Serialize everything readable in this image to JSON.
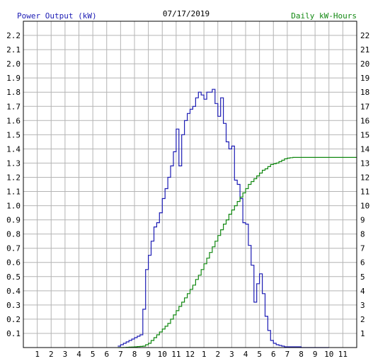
{
  "chart_data": {
    "type": "line",
    "title": "07/17/2019",
    "ylabel": "Power Output (kW)",
    "y2label": "Daily kW-Hours",
    "colors": {
      "power": "#1c1cb4",
      "energy": "#118811",
      "left_label": "#1c1cb4",
      "right_label": "#118811",
      "grid": "#b4b4b4",
      "axis": "#000000"
    },
    "x_range": [
      0,
      24
    ],
    "ylim": [
      0,
      2.3
    ],
    "y2lim": [
      0,
      23
    ],
    "y_ticks": [
      "0.1",
      "0.2",
      "0.3",
      "0.4",
      "0.5",
      "0.6",
      "0.7",
      "0.8",
      "0.9",
      "1.0",
      "1.1",
      "1.2",
      "1.3",
      "1.4",
      "1.5",
      "1.6",
      "1.7",
      "1.8",
      "1.9",
      "2.0",
      "2.1",
      "2.2"
    ],
    "y2_ticks": [
      "1",
      "2",
      "3",
      "4",
      "5",
      "6",
      "7",
      "8",
      "9",
      "10",
      "11",
      "12",
      "13",
      "14",
      "15",
      "16",
      "17",
      "18",
      "19",
      "20",
      "21",
      "22"
    ],
    "x_ticks": [
      "1",
      "2",
      "3",
      "4",
      "5",
      "6",
      "7",
      "8",
      "9",
      "10",
      "11",
      "12",
      "1",
      "2",
      "3",
      "4",
      "5",
      "6",
      "7",
      "8",
      "9",
      "10",
      "11"
    ],
    "series": [
      {
        "name": "Power Output (kW)",
        "axis": "left",
        "x": [
          6.8,
          7.0,
          7.2,
          7.4,
          7.6,
          7.8,
          8.0,
          8.2,
          8.4,
          8.6,
          8.8,
          9.0,
          9.2,
          9.4,
          9.6,
          9.8,
          10.0,
          10.2,
          10.4,
          10.6,
          10.8,
          11.0,
          11.2,
          11.4,
          11.6,
          11.8,
          12.0,
          12.2,
          12.4,
          12.6,
          12.8,
          13.0,
          13.2,
          13.4,
          13.6,
          13.8,
          14.0,
          14.2,
          14.4,
          14.6,
          14.8,
          15.0,
          15.2,
          15.4,
          15.6,
          15.8,
          16.0,
          16.2,
          16.4,
          16.6,
          16.8,
          17.0,
          17.2,
          17.4,
          17.6,
          17.8,
          18.0,
          18.2,
          18.4,
          18.6,
          18.8,
          19.0,
          19.2,
          19.4,
          19.6,
          19.8,
          20.0,
          20.2,
          20.4,
          20.6,
          20.8,
          21.0,
          21.2,
          21.4,
          22.0
        ],
        "values": [
          0.01,
          0.02,
          0.03,
          0.04,
          0.05,
          0.06,
          0.07,
          0.08,
          0.09,
          0.27,
          0.55,
          0.65,
          0.75,
          0.85,
          0.88,
          0.95,
          1.05,
          1.12,
          1.2,
          1.28,
          1.38,
          1.54,
          1.28,
          1.5,
          1.6,
          1.65,
          1.68,
          1.7,
          1.76,
          1.8,
          1.78,
          1.75,
          1.8,
          1.8,
          1.82,
          1.72,
          1.63,
          1.76,
          1.58,
          1.45,
          1.4,
          1.42,
          1.18,
          1.15,
          1.05,
          0.88,
          0.87,
          0.72,
          0.58,
          0.32,
          0.45,
          0.52,
          0.38,
          0.22,
          0.12,
          0.05,
          0.03,
          0.02,
          0.015,
          0.01,
          0.005,
          0.005,
          0.005,
          0.005,
          0.005,
          0.005,
          0.0,
          0.0,
          0.0,
          0.0,
          0.0,
          0.0,
          0.0,
          0.0,
          0.0
        ]
      },
      {
        "name": "Daily kW-Hours",
        "axis": "right",
        "x": [
          6.8,
          7.0,
          7.2,
          7.4,
          7.6,
          7.8,
          8.0,
          8.2,
          8.4,
          8.6,
          8.8,
          9.0,
          9.2,
          9.4,
          9.6,
          9.8,
          10.0,
          10.2,
          10.4,
          10.6,
          10.8,
          11.0,
          11.2,
          11.4,
          11.6,
          11.8,
          12.0,
          12.2,
          12.4,
          12.6,
          12.8,
          13.0,
          13.2,
          13.4,
          13.6,
          13.8,
          14.0,
          14.2,
          14.4,
          14.6,
          14.8,
          15.0,
          15.2,
          15.4,
          15.6,
          15.8,
          16.0,
          16.2,
          16.4,
          16.6,
          16.8,
          17.0,
          17.2,
          17.4,
          17.6,
          17.8,
          18.0,
          18.2,
          18.4,
          18.6,
          18.8,
          19.0,
          19.2,
          19.4,
          19.6,
          19.8,
          20.0,
          20.2,
          20.4,
          20.6,
          20.8,
          21.0,
          21.2,
          21.4,
          22.0,
          24.0
        ],
        "values": [
          0.0,
          0.0,
          0.01,
          0.02,
          0.03,
          0.04,
          0.05,
          0.07,
          0.08,
          0.1,
          0.2,
          0.3,
          0.5,
          0.7,
          0.9,
          1.1,
          1.3,
          1.5,
          1.7,
          2.0,
          2.3,
          2.6,
          2.9,
          3.2,
          3.5,
          3.8,
          4.1,
          4.4,
          4.8,
          5.1,
          5.5,
          5.9,
          6.3,
          6.7,
          7.1,
          7.5,
          7.9,
          8.3,
          8.7,
          9.0,
          9.4,
          9.7,
          10.0,
          10.3,
          10.6,
          10.9,
          11.2,
          11.5,
          11.7,
          11.9,
          12.1,
          12.3,
          12.5,
          12.6,
          12.75,
          12.9,
          12.95,
          13.0,
          13.1,
          13.2,
          13.3,
          13.35,
          13.38,
          13.4,
          13.4,
          13.4,
          13.4,
          13.4,
          13.4,
          13.4,
          13.4,
          13.4,
          13.4,
          13.4,
          13.4,
          13.4
        ]
      }
    ]
  }
}
